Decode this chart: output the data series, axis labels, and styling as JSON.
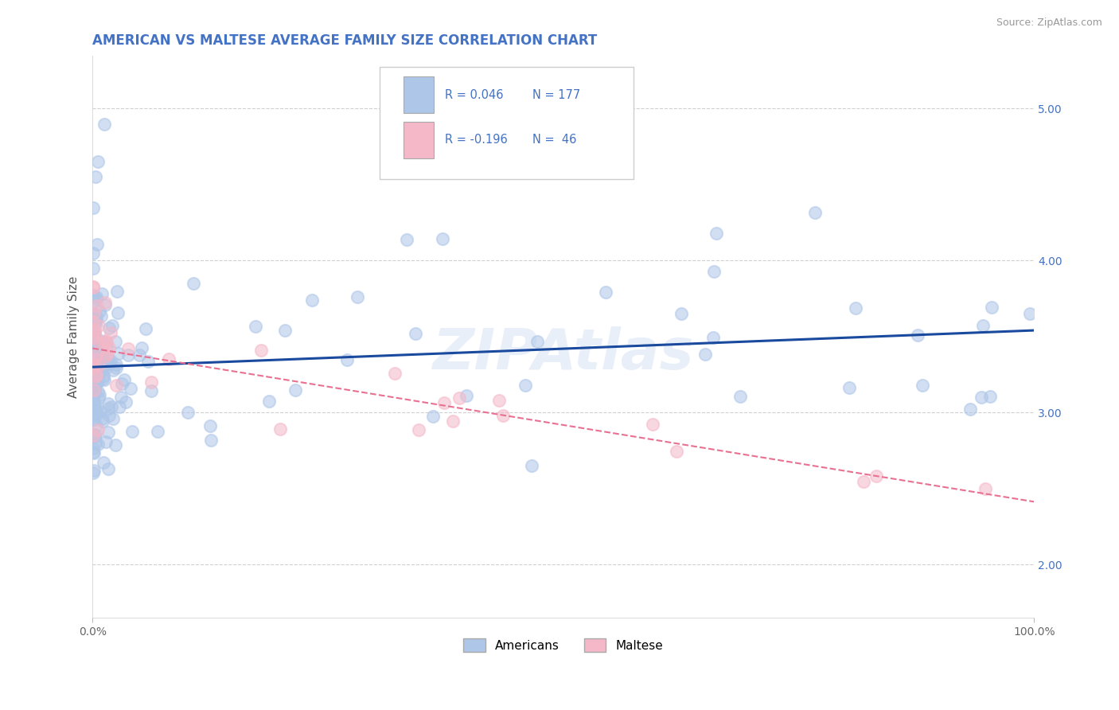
{
  "title": "AMERICAN VS MALTESE AVERAGE FAMILY SIZE CORRELATION CHART",
  "title_color": "#4472c4",
  "title_fontsize": 12,
  "source_text": "Source: ZipAtlas.com",
  "ylabel": "Average Family Size",
  "xlim": [
    0.0,
    1.0
  ],
  "ylim": [
    1.65,
    5.35
  ],
  "yticks": [
    2.0,
    3.0,
    4.0,
    5.0
  ],
  "watermark": "ZIPAtlas",
  "legend_R1_val": "0.046",
  "legend_N1_val": "177",
  "legend_R2_val": "-0.196",
  "legend_N2_val": "46",
  "american_color": "#aec6e8",
  "maltese_color": "#f4b8c8",
  "american_line_color": "#1a4a9e",
  "maltese_line_color": "#e87090",
  "background_color": "#ffffff",
  "grid_color": "#d0d0d0",
  "legend_label1": "Americans",
  "legend_label2": "Maltese"
}
